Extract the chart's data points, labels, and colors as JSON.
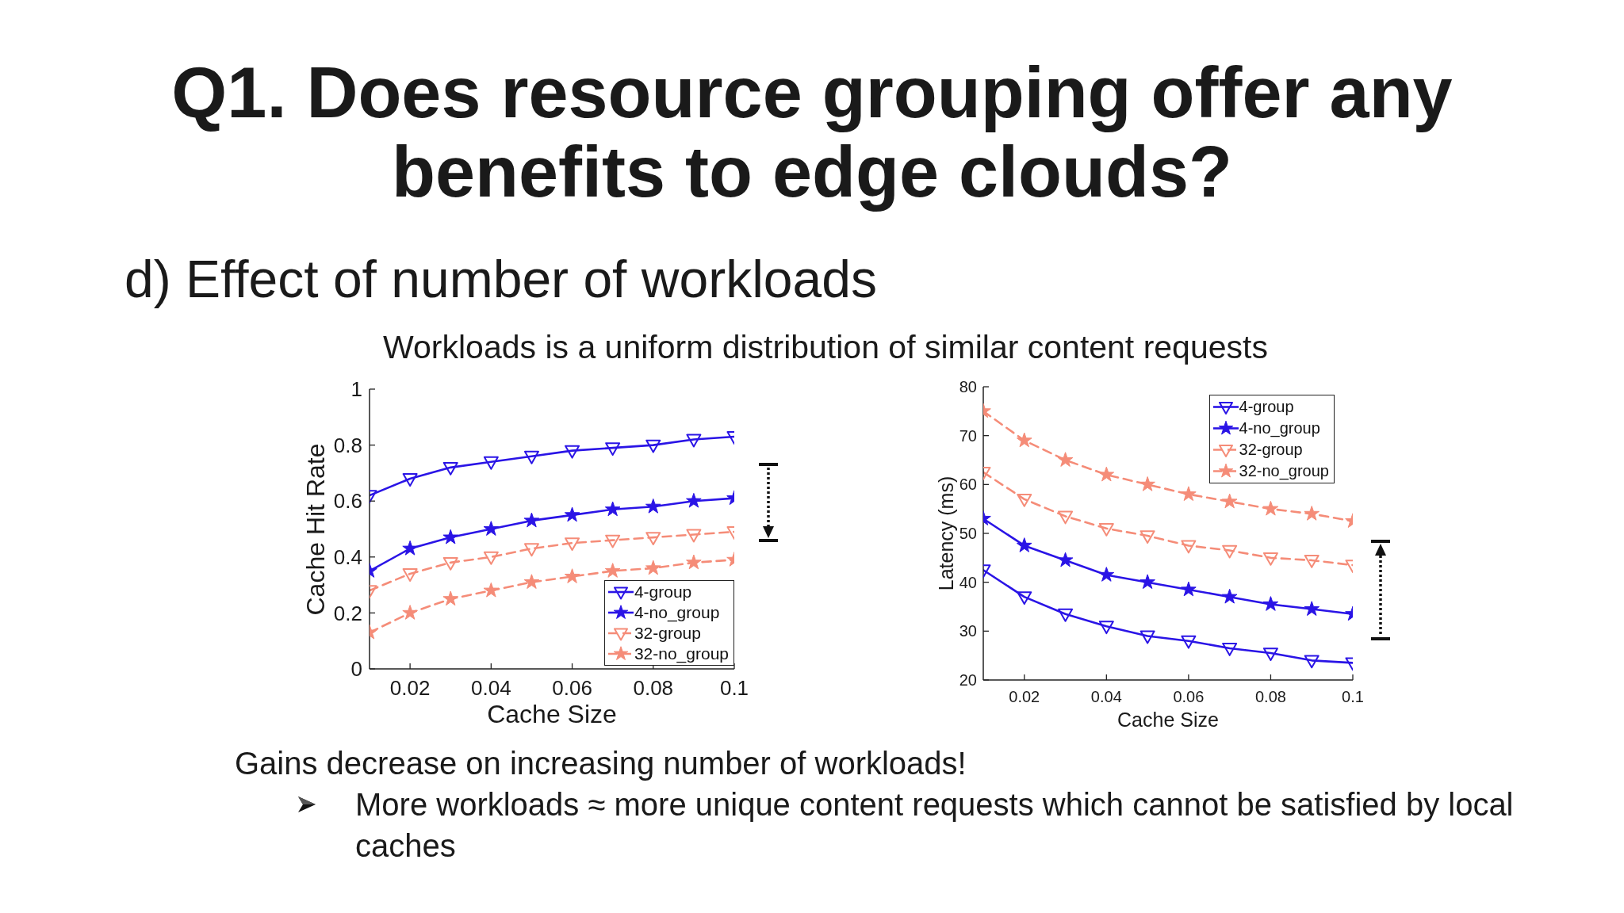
{
  "chart_data": [
    {
      "type": "line",
      "title": "Q1. Does resource grouping offer any benefits to edge clouds?",
      "subtitle": "d) Effect of number of workloads",
      "annotations": [
        "Workloads is a uniform distribution of similar content requests",
        "Gains decrease on increasing number of workloads!",
        "More workloads ≈ more unique content requests which cannot be satisfied by local caches"
      ],
      "xlabel": "Cache Size",
      "ylabel": "Cache Hit Rate",
      "x": [
        0.01,
        0.02,
        0.03,
        0.04,
        0.05,
        0.06,
        0.07,
        0.08,
        0.09,
        0.1
      ],
      "xlim": [
        0.01,
        0.1
      ],
      "xticks": [
        0.02,
        0.04,
        0.06,
        0.08,
        0.1
      ],
      "ylim": [
        0,
        1
      ],
      "yticks": [
        0,
        0.2,
        0.4,
        0.6,
        0.8,
        1
      ],
      "legend": "bottom right",
      "series": [
        {
          "name": "4-group",
          "color": "#2a14e6",
          "marker": "triangle",
          "line_style": "solid",
          "values": [
            0.62,
            0.68,
            0.72,
            0.74,
            0.76,
            0.78,
            0.79,
            0.8,
            0.82,
            0.83
          ]
        },
        {
          "name": "4-no_group",
          "color": "#2a14e6",
          "marker": "star",
          "line_style": "solid",
          "values": [
            0.35,
            0.43,
            0.47,
            0.5,
            0.53,
            0.55,
            0.57,
            0.58,
            0.6,
            0.61
          ]
        },
        {
          "name": "32-group",
          "color": "#f58c78",
          "marker": "triangle",
          "line_style": "dashed",
          "values": [
            0.28,
            0.34,
            0.38,
            0.4,
            0.43,
            0.45,
            0.46,
            0.47,
            0.48,
            0.49
          ]
        },
        {
          "name": "32-no_group",
          "color": "#f58c78",
          "marker": "star",
          "line_style": "dashed",
          "values": [
            0.13,
            0.2,
            0.25,
            0.28,
            0.31,
            0.33,
            0.35,
            0.36,
            0.38,
            0.39
          ]
        }
      ]
    },
    {
      "type": "line",
      "xlabel": "Cache Size",
      "ylabel": "Latency (ms)",
      "x": [
        0.01,
        0.02,
        0.03,
        0.04,
        0.05,
        0.06,
        0.07,
        0.08,
        0.09,
        0.1
      ],
      "xlim": [
        0.01,
        0.1
      ],
      "xticks": [
        0.02,
        0.04,
        0.06,
        0.08,
        0.1
      ],
      "ylim": [
        20,
        80
      ],
      "yticks": [
        20,
        30,
        40,
        50,
        60,
        70,
        80
      ],
      "legend": "top right",
      "series": [
        {
          "name": "4-group",
          "color": "#2a14e6",
          "marker": "triangle",
          "line_style": "solid",
          "values": [
            42.5,
            37,
            33.5,
            31,
            29,
            28,
            26.5,
            25.5,
            24,
            23.5
          ]
        },
        {
          "name": "4-no_group",
          "color": "#2a14e6",
          "marker": "star",
          "line_style": "solid",
          "values": [
            53,
            47.5,
            44.5,
            41.5,
            40,
            38.5,
            37,
            35.5,
            34.5,
            33.5
          ]
        },
        {
          "name": "32-group",
          "color": "#f58c78",
          "marker": "triangle",
          "line_style": "dashed",
          "values": [
            62.5,
            57,
            53.5,
            51,
            49.5,
            47.5,
            46.5,
            45,
            44.5,
            43.5
          ]
        },
        {
          "name": "32-no_group",
          "color": "#f58c78",
          "marker": "star",
          "line_style": "dashed",
          "values": [
            75,
            69,
            65,
            62,
            60,
            58,
            56.5,
            55,
            54,
            52.5
          ]
        }
      ]
    }
  ]
}
